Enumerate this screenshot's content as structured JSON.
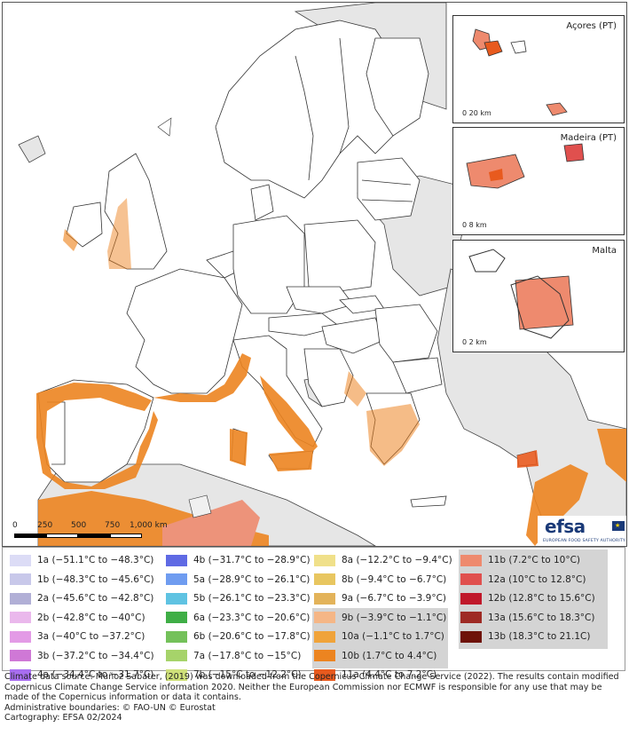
{
  "insets": {
    "azores": {
      "title": "Açores (PT)",
      "scale": "0 20 km"
    },
    "madeira": {
      "title": "Madeira (PT)",
      "scale": "0   8 km"
    },
    "malta": {
      "title": "Malta",
      "scale": "0 2 km"
    }
  },
  "scalebar": {
    "labels": [
      "0",
      "250",
      "500",
      "750",
      "1,000 km"
    ]
  },
  "logo": {
    "wordmark": "efsa",
    "subtitle": "EUROPEAN FOOD SAFETY AUTHORITY"
  },
  "legend": {
    "columns": [
      [
        {
          "label": "1a (−51.1°C to −48.3°C)",
          "color": "#dcdcf6"
        },
        {
          "label": "1b (−48.3°C to −45.6°C)",
          "color": "#c8c8ea"
        },
        {
          "label": "2a (−45.6°C to −42.8°C)",
          "color": "#b1afd6"
        },
        {
          "label": "2b (−42.8°C to −40°C)",
          "color": "#eab8ec"
        },
        {
          "label": "3a (−40°C to −37.2°C)",
          "color": "#e39be6"
        },
        {
          "label": "3b (−37.2°C to −34.4°C)",
          "color": "#cf78d6"
        },
        {
          "label": "4a (−34.4°C to −31.7°C)",
          "color": "#a86ef0"
        }
      ],
      [
        {
          "label": "4b (−31.7°C to −28.9°C)",
          "color": "#5f6ae4"
        },
        {
          "label": "5a (−28.9°C to −26.1°C)",
          "color": "#6f9cf0"
        },
        {
          "label": "5b (−26.1°C to −23.3°C)",
          "color": "#5fc3e2"
        },
        {
          "label": "6a (−23.3°C to −20.6°C)",
          "color": "#3fae46"
        },
        {
          "label": "6b (−20.6°C to −17.8°C)",
          "color": "#74c15a"
        },
        {
          "label": "7a (−17.8°C to −15°C)",
          "color": "#a6d36a"
        },
        {
          "label": "7b (−15°C to −12.2°C)",
          "color": "#cfe07a"
        }
      ],
      [
        {
          "label": "8a (−12.2°C to −9.4°C)",
          "color": "#f0e08a"
        },
        {
          "label": "8b (−9.4°C to −6.7°C)",
          "color": "#e8c660"
        },
        {
          "label": "9a (−6.7°C to −3.9°C)",
          "color": "#e3b35a"
        },
        {
          "label": "9b (−3.9°C to −1.1°C)",
          "color": "#f5b686"
        },
        {
          "label": "10a (−1.1°C to 1.7°C)",
          "color": "#f0a33a"
        },
        {
          "label": "10b (1.7°C to 4.4°C)",
          "color": "#ec8420"
        },
        {
          "label": "11a (4.4°C to 7.2°C)",
          "color": "#e85a1e"
        }
      ],
      [
        {
          "label": "11b (7.2°C to 10°C)",
          "color": "#ee8a6e"
        },
        {
          "label": "12a (10°C to 12.8°C)",
          "color": "#e0504e"
        },
        {
          "label": "12b (12.8°C to 15.6°C)",
          "color": "#c0182a"
        },
        {
          "label": "13a (15.6°C to 18.3°C)",
          "color": "#9e2a24"
        },
        {
          "label": "13b (18.3°C to 21.1C)",
          "color": "#6e1208"
        }
      ]
    ]
  },
  "notes": [
    "Climate data source: Muñoz Sabater, (2019) was downloaded from the Copernicus Climate Change Service (2022). The results contain modified Copernicus Climate Change Service information 2020. Neither the European Commission nor ECMWF is responsible for any use that may be made of the Copernicus information or data it contains.",
    "Administrative boundaries: © FAO-UN © Eurostat",
    "Cartography: EFSA 02/2024"
  ]
}
